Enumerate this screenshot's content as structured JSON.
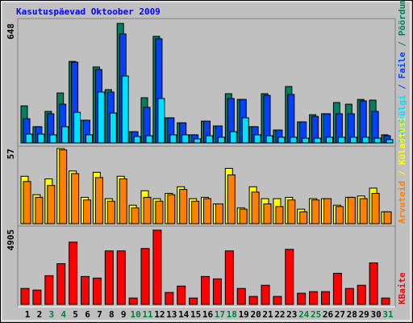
{
  "chart_data": [
    {
      "type": "bar",
      "title": "Kasutuspäevad Oktoober 2009",
      "ylim": [
        0,
        648
      ],
      "yticks": [
        648
      ],
      "legend_separator": " / ",
      "series": [
        {
          "name": "Pöördumisi",
          "color": "#008060",
          "values": [
            201,
            88,
            171,
            271,
            442,
            123,
            412,
            289,
            648,
            61,
            245,
            578,
            136,
            109,
            44,
            118,
            92,
            267,
            236,
            88,
            267,
            70,
            306,
            114,
            153,
            158,
            219,
            210,
            236,
            232,
            44
          ]
        },
        {
          "name": "Faile",
          "color": "#0040ff",
          "values": [
            131,
            88,
            158,
            210,
            438,
            123,
            398,
            276,
            591,
            61,
            193,
            565,
            136,
            109,
            44,
            118,
            92,
            241,
            236,
            88,
            258,
            70,
            263,
            114,
            144,
            158,
            158,
            158,
            228,
            171,
            39
          ]
        },
        {
          "name": "Lehekülgi",
          "color": "#00e0ff",
          "values": [
            48,
            48,
            44,
            88,
            166,
            44,
            276,
            162,
            363,
            35,
            39,
            241,
            44,
            44,
            22,
            39,
            31,
            61,
            136,
            44,
            39,
            31,
            31,
            26,
            26,
            31,
            31,
            31,
            31,
            26,
            18
          ]
        }
      ]
    },
    {
      "type": "bar",
      "ylim": [
        0,
        57
      ],
      "yticks": [
        57
      ],
      "legend_separator": " / ",
      "series": [
        {
          "name": "Külastusi",
          "color": "#ffff00",
          "values": [
            36,
            22,
            34,
            57,
            40,
            20,
            39,
            19,
            36,
            14,
            25,
            19,
            23,
            28,
            19,
            20,
            15,
            42,
            12,
            28,
            19,
            19,
            20,
            11,
            19,
            19,
            14,
            20,
            21,
            27,
            9
          ]
        },
        {
          "name": "Arvuteid",
          "color": "#ff8000",
          "values": [
            32,
            20,
            29,
            56,
            38,
            18,
            35,
            17,
            34,
            12,
            20,
            17,
            22,
            26,
            17,
            19,
            15,
            37,
            11,
            24,
            15,
            13,
            18,
            9,
            18,
            19,
            13,
            20,
            19,
            23,
            9
          ]
        }
      ]
    },
    {
      "type": "bar",
      "ylim": [
        0,
        4905
      ],
      "yticks": [
        4905
      ],
      "categories": [
        "1",
        "2",
        "3",
        "4",
        "5",
        "6",
        "7",
        "8",
        "9",
        "10",
        "11",
        "12",
        "13",
        "14",
        "15",
        "16",
        "17",
        "18",
        "19",
        "20",
        "21",
        "22",
        "23",
        "24",
        "25",
        "26",
        "27",
        "28",
        "29",
        "30",
        "31"
      ],
      "category_colors": [
        "#000000",
        "#000000",
        "#008040",
        "#008040",
        "#000000",
        "#000000",
        "#000000",
        "#000000",
        "#000000",
        "#008040",
        "#008040",
        "#000000",
        "#000000",
        "#000000",
        "#000000",
        "#000000",
        "#008040",
        "#008040",
        "#000000",
        "#000000",
        "#000000",
        "#000000",
        "#000000",
        "#008040",
        "#008040",
        "#000000",
        "#000000",
        "#000000",
        "#000000",
        "#000000",
        "#008040"
      ],
      "series": [
        {
          "name": "KBaite",
          "color": "#ff0000",
          "values": [
            1044,
            939,
            1878,
            2661,
            4070,
            1826,
            1722,
            3496,
            3496,
            417,
            3653,
            4853,
            783,
            1200,
            417,
            1826,
            1670,
            3496,
            1044,
            522,
            1252,
            522,
            3600,
            731,
            835,
            835,
            2035,
            1044,
            1252,
            2713,
            417
          ]
        }
      ]
    }
  ]
}
